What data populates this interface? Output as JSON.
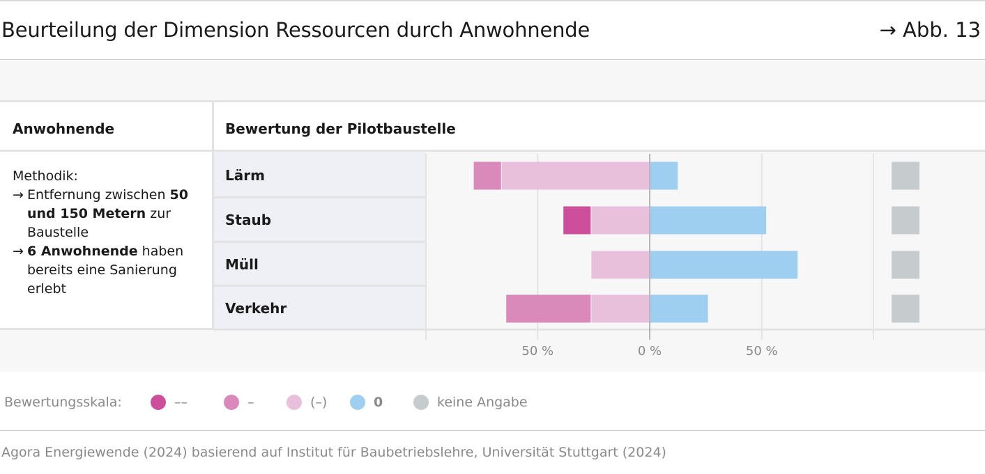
{
  "header": {
    "title": "Beurteilung der Dimension Ressourcen durch Anwohnende",
    "figure_ref": "→ Abb. 13"
  },
  "table": {
    "left_header": "Anwohnende",
    "right_header": "Bewertung der Pilotbaustelle",
    "method": {
      "title": "Methodik:",
      "bullets": [
        {
          "arrow": "→",
          "pre": "Entfernung zwischen ",
          "bold": "50 und 150 Metern",
          "post": " zur Baustelle"
        },
        {
          "arrow": "→",
          "pre": "",
          "bold": "6 Anwohnende",
          "post": " haben bereits eine Sanierung erlebt"
        }
      ]
    }
  },
  "chart_data": {
    "type": "bar",
    "orientation": "horizontal-diverging",
    "categories": [
      "Lärm",
      "Staub",
      "Müll",
      "Verkehr"
    ],
    "series": [
      {
        "name": "––",
        "color": "#cd4f9b",
        "values": [
          0,
          12.5,
          0,
          0
        ]
      },
      {
        "name": "–",
        "color": "#d98abb",
        "values": [
          12.5,
          0,
          0,
          38
        ]
      },
      {
        "name": "(–)",
        "color": "#e8c0dc",
        "values": [
          66,
          26,
          26,
          26
        ]
      },
      {
        "name": "0",
        "color": "#9fcff0",
        "values": [
          12.5,
          52,
          66,
          26
        ]
      },
      {
        "name": "keine Angabe",
        "color": "#c6cbcd",
        "values": [
          0,
          0,
          0,
          0
        ]
      }
    ],
    "xlim": [
      -100,
      100
    ],
    "x_ticks": [
      {
        "value": -50,
        "label": "50 %"
      },
      {
        "value": 0,
        "label": "0 %"
      },
      {
        "value": 50,
        "label": "50 %"
      }
    ],
    "grid": true,
    "legend_label": "Bewertungsskala:",
    "legend_position": "bottom-left"
  },
  "source": "Agora Energiewende (2024) basierend auf Institut für Baubetriebslehre, Universität Stuttgart (2024)"
}
